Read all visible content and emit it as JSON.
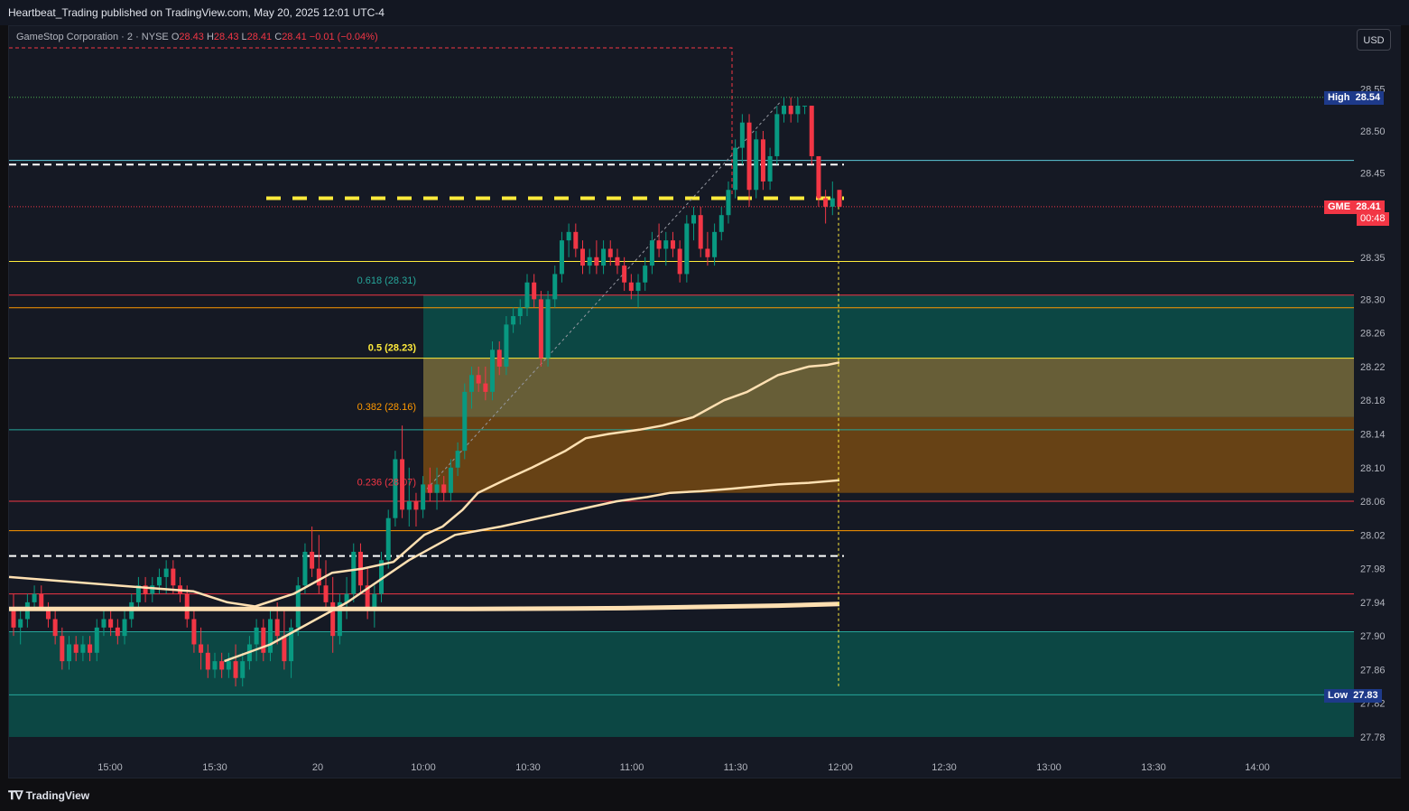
{
  "header": {
    "publisher": "Heartbeat_Trading published on TradingView.com, May 20, 2025 12:01 UTC-4"
  },
  "legend": {
    "symbol": "GameStop Corporation · 2 · NYSE",
    "o_label": "O",
    "o_value": "28.43",
    "h_label": "H",
    "h_value": "28.43",
    "l_label": "L",
    "l_value": "28.41",
    "c_label": "C",
    "c_value": "28.41",
    "change": "−0.01 (−0.04%)"
  },
  "toolbar": {
    "currency_label": "USD"
  },
  "footer": {
    "brand": "TradingView"
  },
  "colors": {
    "background": "#151924",
    "up": "#089981",
    "down": "#f23645",
    "vwap": "#ffe0b2",
    "fib_zone_teal": "#0c4a47",
    "fib_zone_yellow": "#6b6239",
    "fib_zone_orange": "#6b4515",
    "key_level_yellow": "#ffeb3b"
  },
  "price_tags": {
    "high": {
      "label": "High",
      "value": "28.54"
    },
    "last": {
      "label": "GME",
      "value": "28.41",
      "countdown": "00:48"
    },
    "low": {
      "label": "Low",
      "value": "27.83"
    }
  },
  "chart_data": {
    "type": "candlestick",
    "symbol": "GME",
    "timeframe": "2",
    "ylim": [
      27.76,
      28.58
    ],
    "y_ticks": [
      "28.55",
      "28.50",
      "28.45",
      "28.41",
      "28.35",
      "28.30",
      "28.26",
      "28.22",
      "28.18",
      "28.14",
      "28.10",
      "28.06",
      "28.02",
      "27.98",
      "27.94",
      "27.90",
      "27.86",
      "27.82",
      "27.78"
    ],
    "x_ticks": [
      "15:00",
      "15:30",
      "20",
      "10:00",
      "10:30",
      "11:00",
      "11:30",
      "12:00",
      "12:30",
      "13:00",
      "13:30",
      "14:00"
    ],
    "fib_levels": [
      {
        "label": "0.618 (28.31)",
        "value": 28.31,
        "color": "#26a69a"
      },
      {
        "label": "0.5 (28.23)",
        "value": 28.23,
        "color": "#ffeb3b"
      },
      {
        "label": "0.382 (28.16)",
        "value": 28.16,
        "color": "#ff9800"
      },
      {
        "label": "0.236 (28.07)",
        "value": 28.07,
        "color": "#f23645"
      }
    ],
    "horizontal_levels": [
      {
        "value": 28.54,
        "color": "#4caf50",
        "style": "dotted"
      },
      {
        "value": 28.465,
        "color": "#5ec8d8",
        "style": "solid"
      },
      {
        "value": 28.46,
        "color": "#ffffff",
        "style": "dashed"
      },
      {
        "value": 28.42,
        "color": "#ffeb3b",
        "style": "dashed-thick"
      },
      {
        "value": 28.41,
        "color": "#f23645",
        "style": "dotted"
      },
      {
        "value": 28.345,
        "color": "#ffeb3b",
        "style": "solid"
      },
      {
        "value": 28.305,
        "color": "#f23645",
        "style": "solid"
      },
      {
        "value": 28.29,
        "color": "#ff9800",
        "style": "solid"
      },
      {
        "value": 28.23,
        "color": "#ffeb3b",
        "style": "solid"
      },
      {
        "value": 28.145,
        "color": "#26a69a",
        "style": "solid"
      },
      {
        "value": 28.06,
        "color": "#f23645",
        "style": "solid"
      },
      {
        "value": 28.025,
        "color": "#ff9800",
        "style": "solid"
      },
      {
        "value": 27.995,
        "color": "#ffffff",
        "style": "dashed"
      },
      {
        "value": 27.95,
        "color": "#f23645",
        "style": "solid"
      },
      {
        "value": 27.905,
        "color": "#26a69a",
        "style": "solid"
      },
      {
        "value": 27.83,
        "color": "#26a69a",
        "style": "solid"
      }
    ],
    "zones": [
      {
        "from": 28.23,
        "to": 28.305,
        "color": "#0c4a47"
      },
      {
        "from": 28.16,
        "to": 28.23,
        "color": "#6b6239"
      },
      {
        "from": 28.07,
        "to": 28.16,
        "color": "#6b4515"
      },
      {
        "from": 27.78,
        "to": 27.905,
        "color": "#0c4a47"
      }
    ],
    "candles": [
      {
        "o": 27.93,
        "h": 27.95,
        "l": 27.9,
        "c": 27.91
      },
      {
        "o": 27.91,
        "h": 27.93,
        "l": 27.89,
        "c": 27.92
      },
      {
        "o": 27.92,
        "h": 27.95,
        "l": 27.91,
        "c": 27.94
      },
      {
        "o": 27.94,
        "h": 27.96,
        "l": 27.93,
        "c": 27.95
      },
      {
        "o": 27.95,
        "h": 27.96,
        "l": 27.93,
        "c": 27.93
      },
      {
        "o": 27.93,
        "h": 27.94,
        "l": 27.91,
        "c": 27.92
      },
      {
        "o": 27.92,
        "h": 27.93,
        "l": 27.89,
        "c": 27.9
      },
      {
        "o": 27.9,
        "h": 27.91,
        "l": 27.86,
        "c": 27.87
      },
      {
        "o": 27.87,
        "h": 27.9,
        "l": 27.86,
        "c": 27.89
      },
      {
        "o": 27.89,
        "h": 27.9,
        "l": 27.87,
        "c": 27.88
      },
      {
        "o": 27.88,
        "h": 27.9,
        "l": 27.87,
        "c": 27.89
      },
      {
        "o": 27.89,
        "h": 27.9,
        "l": 27.87,
        "c": 27.88
      },
      {
        "o": 27.88,
        "h": 27.92,
        "l": 27.87,
        "c": 27.91
      },
      {
        "o": 27.91,
        "h": 27.93,
        "l": 27.9,
        "c": 27.92
      },
      {
        "o": 27.92,
        "h": 27.93,
        "l": 27.9,
        "c": 27.91
      },
      {
        "o": 27.91,
        "h": 27.92,
        "l": 27.89,
        "c": 27.9
      },
      {
        "o": 27.9,
        "h": 27.93,
        "l": 27.89,
        "c": 27.92
      },
      {
        "o": 27.92,
        "h": 27.95,
        "l": 27.91,
        "c": 27.94
      },
      {
        "o": 27.94,
        "h": 27.97,
        "l": 27.93,
        "c": 27.96
      },
      {
        "o": 27.96,
        "h": 27.97,
        "l": 27.94,
        "c": 27.95
      },
      {
        "o": 27.95,
        "h": 27.97,
        "l": 27.94,
        "c": 27.96
      },
      {
        "o": 27.96,
        "h": 27.98,
        "l": 27.95,
        "c": 27.97
      },
      {
        "o": 27.97,
        "h": 27.99,
        "l": 27.95,
        "c": 27.98
      },
      {
        "o": 27.98,
        "h": 27.99,
        "l": 27.95,
        "c": 27.96
      },
      {
        "o": 27.96,
        "h": 27.97,
        "l": 27.94,
        "c": 27.95
      },
      {
        "o": 27.95,
        "h": 27.96,
        "l": 27.91,
        "c": 27.92
      },
      {
        "o": 27.92,
        "h": 27.93,
        "l": 27.88,
        "c": 27.89
      },
      {
        "o": 27.89,
        "h": 27.91,
        "l": 27.86,
        "c": 27.88
      },
      {
        "o": 27.88,
        "h": 27.89,
        "l": 27.85,
        "c": 27.86
      },
      {
        "o": 27.86,
        "h": 27.88,
        "l": 27.85,
        "c": 27.87
      },
      {
        "o": 27.87,
        "h": 27.88,
        "l": 27.85,
        "c": 27.86
      },
      {
        "o": 27.86,
        "h": 27.88,
        "l": 27.85,
        "c": 27.87
      },
      {
        "o": 27.87,
        "h": 27.89,
        "l": 27.84,
        "c": 27.85
      },
      {
        "o": 27.85,
        "h": 27.88,
        "l": 27.84,
        "c": 27.87
      },
      {
        "o": 27.87,
        "h": 27.9,
        "l": 27.86,
        "c": 27.89
      },
      {
        "o": 27.89,
        "h": 27.92,
        "l": 27.87,
        "c": 27.91
      },
      {
        "o": 27.91,
        "h": 27.92,
        "l": 27.87,
        "c": 27.88
      },
      {
        "o": 27.88,
        "h": 27.93,
        "l": 27.87,
        "c": 27.92
      },
      {
        "o": 27.92,
        "h": 27.94,
        "l": 27.89,
        "c": 27.9
      },
      {
        "o": 27.9,
        "h": 27.93,
        "l": 27.86,
        "c": 27.87
      },
      {
        "o": 27.87,
        "h": 27.92,
        "l": 27.85,
        "c": 27.91
      },
      {
        "o": 27.91,
        "h": 27.97,
        "l": 27.9,
        "c": 27.96
      },
      {
        "o": 27.96,
        "h": 28.01,
        "l": 27.95,
        "c": 28.0
      },
      {
        "o": 28.0,
        "h": 28.03,
        "l": 27.97,
        "c": 27.98
      },
      {
        "o": 27.98,
        "h": 28.02,
        "l": 27.95,
        "c": 27.96
      },
      {
        "o": 27.96,
        "h": 27.99,
        "l": 27.93,
        "c": 27.94
      },
      {
        "o": 27.94,
        "h": 27.97,
        "l": 27.88,
        "c": 27.9
      },
      {
        "o": 27.9,
        "h": 27.95,
        "l": 27.89,
        "c": 27.94
      },
      {
        "o": 27.94,
        "h": 27.97,
        "l": 27.92,
        "c": 27.95
      },
      {
        "o": 27.95,
        "h": 28.01,
        "l": 27.94,
        "c": 28.0
      },
      {
        "o": 28.0,
        "h": 28.01,
        "l": 27.95,
        "c": 27.96
      },
      {
        "o": 27.96,
        "h": 27.98,
        "l": 27.92,
        "c": 27.93
      },
      {
        "o": 27.93,
        "h": 27.96,
        "l": 27.91,
        "c": 27.95
      },
      {
        "o": 27.95,
        "h": 28.0,
        "l": 27.94,
        "c": 27.99
      },
      {
        "o": 27.99,
        "h": 28.05,
        "l": 27.98,
        "c": 28.04
      },
      {
        "o": 28.04,
        "h": 28.12,
        "l": 28.03,
        "c": 28.11
      },
      {
        "o": 28.11,
        "h": 28.15,
        "l": 28.04,
        "c": 28.05
      },
      {
        "o": 28.05,
        "h": 28.1,
        "l": 28.03,
        "c": 28.06
      },
      {
        "o": 28.06,
        "h": 28.07,
        "l": 28.03,
        "c": 28.05
      },
      {
        "o": 28.05,
        "h": 28.09,
        "l": 28.04,
        "c": 28.08
      },
      {
        "o": 28.08,
        "h": 28.1,
        "l": 28.06,
        "c": 28.07
      },
      {
        "o": 28.07,
        "h": 28.1,
        "l": 28.05,
        "c": 28.08
      },
      {
        "o": 28.08,
        "h": 28.09,
        "l": 28.06,
        "c": 28.07
      },
      {
        "o": 28.07,
        "h": 28.11,
        "l": 28.06,
        "c": 28.1
      },
      {
        "o": 28.1,
        "h": 28.13,
        "l": 28.09,
        "c": 28.12
      },
      {
        "o": 28.12,
        "h": 28.2,
        "l": 28.11,
        "c": 28.19
      },
      {
        "o": 28.19,
        "h": 28.22,
        "l": 28.17,
        "c": 28.21
      },
      {
        "o": 28.21,
        "h": 28.22,
        "l": 28.19,
        "c": 28.2
      },
      {
        "o": 28.2,
        "h": 28.22,
        "l": 28.18,
        "c": 28.19
      },
      {
        "o": 28.19,
        "h": 28.25,
        "l": 28.18,
        "c": 28.24
      },
      {
        "o": 28.24,
        "h": 28.25,
        "l": 28.21,
        "c": 28.22
      },
      {
        "o": 28.22,
        "h": 28.28,
        "l": 28.21,
        "c": 28.27
      },
      {
        "o": 28.27,
        "h": 28.29,
        "l": 28.26,
        "c": 28.28
      },
      {
        "o": 28.28,
        "h": 28.3,
        "l": 28.27,
        "c": 28.29
      },
      {
        "o": 28.29,
        "h": 28.33,
        "l": 28.28,
        "c": 28.32
      },
      {
        "o": 28.32,
        "h": 28.33,
        "l": 28.29,
        "c": 28.3
      },
      {
        "o": 28.3,
        "h": 28.31,
        "l": 28.22,
        "c": 28.23
      },
      {
        "o": 28.23,
        "h": 28.31,
        "l": 28.22,
        "c": 28.3
      },
      {
        "o": 28.3,
        "h": 28.34,
        "l": 28.29,
        "c": 28.33
      },
      {
        "o": 28.33,
        "h": 28.38,
        "l": 28.32,
        "c": 28.37
      },
      {
        "o": 28.37,
        "h": 28.39,
        "l": 28.35,
        "c": 28.38
      },
      {
        "o": 28.38,
        "h": 28.39,
        "l": 28.35,
        "c": 28.36
      },
      {
        "o": 28.36,
        "h": 28.37,
        "l": 28.33,
        "c": 28.34
      },
      {
        "o": 28.34,
        "h": 28.36,
        "l": 28.33,
        "c": 28.35
      },
      {
        "o": 28.35,
        "h": 28.37,
        "l": 28.33,
        "c": 28.34
      },
      {
        "o": 28.34,
        "h": 28.37,
        "l": 28.33,
        "c": 28.36
      },
      {
        "o": 28.36,
        "h": 28.37,
        "l": 28.34,
        "c": 28.35
      },
      {
        "o": 28.35,
        "h": 28.36,
        "l": 28.33,
        "c": 28.34
      },
      {
        "o": 28.34,
        "h": 28.35,
        "l": 28.31,
        "c": 28.32
      },
      {
        "o": 28.32,
        "h": 28.33,
        "l": 28.3,
        "c": 28.31
      },
      {
        "o": 28.31,
        "h": 28.33,
        "l": 28.29,
        "c": 28.32
      },
      {
        "o": 28.32,
        "h": 28.35,
        "l": 28.31,
        "c": 28.34
      },
      {
        "o": 28.34,
        "h": 28.38,
        "l": 28.33,
        "c": 28.37
      },
      {
        "o": 28.37,
        "h": 28.39,
        "l": 28.35,
        "c": 28.36
      },
      {
        "o": 28.36,
        "h": 28.38,
        "l": 28.34,
        "c": 28.37
      },
      {
        "o": 28.37,
        "h": 28.38,
        "l": 28.35,
        "c": 28.36
      },
      {
        "o": 28.36,
        "h": 28.37,
        "l": 28.32,
        "c": 28.33
      },
      {
        "o": 28.33,
        "h": 28.4,
        "l": 28.32,
        "c": 28.39
      },
      {
        "o": 28.39,
        "h": 28.41,
        "l": 28.37,
        "c": 28.4
      },
      {
        "o": 28.4,
        "h": 28.41,
        "l": 28.35,
        "c": 28.36
      },
      {
        "o": 28.36,
        "h": 28.38,
        "l": 28.34,
        "c": 28.35
      },
      {
        "o": 28.35,
        "h": 28.39,
        "l": 28.34,
        "c": 28.38
      },
      {
        "o": 28.38,
        "h": 28.41,
        "l": 28.37,
        "c": 28.4
      },
      {
        "o": 28.4,
        "h": 28.44,
        "l": 28.39,
        "c": 28.43
      },
      {
        "o": 28.43,
        "h": 28.49,
        "l": 28.42,
        "c": 28.48
      },
      {
        "o": 28.48,
        "h": 28.52,
        "l": 28.46,
        "c": 28.51
      },
      {
        "o": 28.51,
        "h": 28.52,
        "l": 28.41,
        "c": 28.43
      },
      {
        "o": 28.43,
        "h": 28.5,
        "l": 28.42,
        "c": 28.49
      },
      {
        "o": 28.49,
        "h": 28.5,
        "l": 28.43,
        "c": 28.44
      },
      {
        "o": 28.44,
        "h": 28.48,
        "l": 28.43,
        "c": 28.47
      },
      {
        "o": 28.47,
        "h": 28.53,
        "l": 28.46,
        "c": 28.52
      },
      {
        "o": 28.52,
        "h": 28.54,
        "l": 28.51,
        "c": 28.53
      },
      {
        "o": 28.53,
        "h": 28.54,
        "l": 28.51,
        "c": 28.52
      },
      {
        "o": 28.52,
        "h": 28.54,
        "l": 28.51,
        "c": 28.53
      },
      {
        "o": 28.53,
        "h": 28.53,
        "l": 28.52,
        "c": 28.53
      },
      {
        "o": 28.53,
        "h": 28.53,
        "l": 28.46,
        "c": 28.47
      },
      {
        "o": 28.47,
        "h": 28.47,
        "l": 28.41,
        "c": 28.42
      },
      {
        "o": 28.42,
        "h": 28.43,
        "l": 28.39,
        "c": 28.41
      },
      {
        "o": 28.41,
        "h": 28.44,
        "l": 28.4,
        "c": 28.42
      },
      {
        "o": 28.43,
        "h": 28.43,
        "l": 28.41,
        "c": 28.41
      }
    ],
    "vwap_main": [
      [
        0,
        27.97
      ],
      [
        70,
        27.96
      ],
      [
        120,
        27.953
      ],
      [
        142,
        27.94
      ],
      [
        160,
        27.935
      ],
      [
        185,
        27.95
      ],
      [
        210,
        27.975
      ],
      [
        230,
        27.98
      ],
      [
        250,
        27.988
      ],
      [
        270,
        28.02
      ],
      [
        282,
        28.03
      ],
      [
        295,
        28.05
      ],
      [
        305,
        28.07
      ],
      [
        322,
        28.085
      ],
      [
        340,
        28.1
      ],
      [
        362,
        28.12
      ],
      [
        375,
        28.135
      ],
      [
        390,
        28.14
      ],
      [
        410,
        28.145
      ],
      [
        425,
        28.15
      ],
      [
        445,
        28.16
      ],
      [
        465,
        28.18
      ],
      [
        480,
        28.19
      ],
      [
        500,
        28.21
      ],
      [
        520,
        28.22
      ],
      [
        532,
        28.222
      ],
      [
        540,
        28.225
      ]
    ],
    "vwap_upper_mid": [
      [
        140,
        27.87
      ],
      [
        170,
        27.89
      ],
      [
        200,
        27.92
      ],
      [
        220,
        27.94
      ],
      [
        260,
        27.99
      ],
      [
        290,
        28.02
      ],
      [
        320,
        28.03
      ],
      [
        345,
        28.04
      ],
      [
        370,
        28.05
      ],
      [
        395,
        28.06
      ],
      [
        415,
        28.065
      ],
      [
        430,
        28.07
      ],
      [
        450,
        28.072
      ],
      [
        470,
        28.075
      ],
      [
        500,
        28.08
      ],
      [
        520,
        28.082
      ],
      [
        540,
        28.085
      ]
    ],
    "vwap_anchor": [
      [
        0,
        27.932
      ],
      [
        100,
        27.932
      ],
      [
        200,
        27.932
      ],
      [
        300,
        27.932
      ],
      [
        400,
        27.933
      ],
      [
        500,
        27.936
      ],
      [
        540,
        27.938
      ]
    ],
    "x_index_range": [
      0,
      540
    ]
  }
}
